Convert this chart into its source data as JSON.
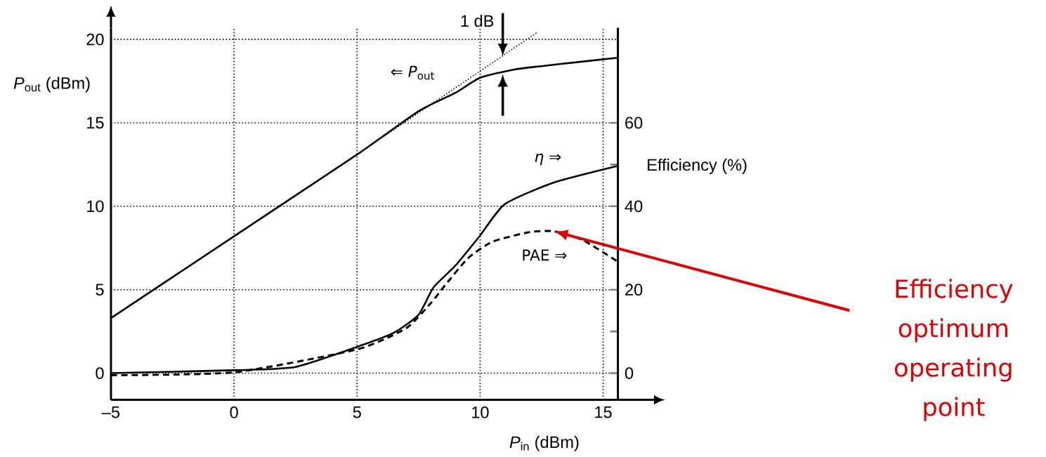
{
  "chart_data": {
    "type": "line",
    "xlabel": "*P*$_{in}$ (dBm)",
    "ylabel": "*P*$_{out}$ (dBm)",
    "y2label": "Efficiency (%)",
    "annotations": [
      "1 dB",
      "Efficiency optimum operating point"
    ],
    "xlim": [
      -5,
      15.6
    ],
    "ylim": [
      -1.6,
      20.7
    ],
    "y2lim": [
      -6.4,
      82.8
    ],
    "xticks": [
      {
        "value": -5,
        "label": "–5"
      },
      0,
      5,
      10,
      15
    ],
    "yticks": [
      0,
      5,
      10,
      15,
      20
    ],
    "y2ticks": [
      0,
      {
        "value": 10,
        "label": null
      },
      20,
      40,
      {
        "value": 50,
        "label": null
      },
      60
    ],
    "grid": true,
    "series": [
      {
        "name": "⇐ *P*$_{out}$",
        "color": "#000000",
        "line_style": "solid",
        "x": [
          -5,
          0,
          5,
          7.5,
          9,
          10,
          11.4,
          13.1,
          15.6
        ],
        "values": [
          3.3,
          8.2,
          13.1,
          15.7,
          16.8,
          17.7,
          18.2,
          18.5,
          18.9
        ]
      },
      {
        "color": "#000000",
        "line_style": "dotted",
        "x": [
          5,
          12.3
        ],
        "values": [
          13.1,
          20.4
        ]
      },
      {
        "name": "*η* ⇒",
        "color": "#000000",
        "line_style": "solid",
        "axis": "y2",
        "x": [
          -5,
          0,
          2.5,
          5,
          6.5,
          7.5,
          8.1,
          9,
          10,
          11,
          13,
          15.6
        ],
        "values": [
          0,
          0.7,
          1.5,
          6.3,
          9.7,
          14,
          20.5,
          25.8,
          33,
          40.5,
          45.7,
          49.7
        ]
      },
      {
        "name": "PAE ⇒",
        "color": "#000000",
        "line_style": "dashed",
        "axis": "y2",
        "x": [
          -5,
          0,
          5,
          7,
          8,
          8.5,
          9.5,
          10.5,
          12,
          13,
          14.2,
          15.6
        ],
        "values": [
          -0.5,
          0.2,
          5.7,
          10.8,
          16.8,
          20.5,
          27.5,
          31.5,
          33.8,
          34,
          31.8,
          26.7
        ]
      }
    ]
  }
}
